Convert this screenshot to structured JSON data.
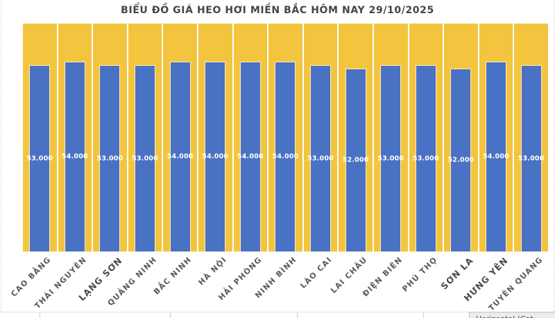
{
  "chart_data": {
    "type": "bar",
    "title": "BIỂU ĐỒ GIÁ HEO HƠI MIỀN BẮC HÔM NAY 29/10/2025",
    "categories": [
      "CAO BẰNG",
      "THÁI NGUYÊN",
      "LẠNG SƠN",
      "QUẢNG NINH",
      "BẮC NINH",
      "HÀ NỘI",
      "HẢI PHÒNG",
      "NINH BÌNH",
      "LÀO CAI",
      "LAI CHÂU",
      "ĐIỆN BIÊN",
      "PHÚ THỌ",
      "SƠN LA",
      "HƯNG YÊN",
      "TUYÊN QUANG"
    ],
    "values": [
      53000,
      54000,
      53000,
      53000,
      54000,
      54000,
      54000,
      54000,
      53000,
      52000,
      53000,
      53000,
      52000,
      54000,
      53000
    ],
    "value_labels": [
      "53.000",
      "54.000",
      "53.000",
      "53.000",
      "54.000",
      "54.000",
      "54.000",
      "54.000",
      "53.000",
      "52.000",
      "53.000",
      "53.000",
      "52.000",
      "54.000",
      "53.000"
    ],
    "bold_categories": [
      "LẠNG SƠN",
      "SƠN LA",
      "HƯNG YÊN"
    ],
    "xlabel": "",
    "ylabel": "",
    "ylim": [
      0,
      65000
    ],
    "legend": "none",
    "grid": false,
    "bar_color": "#4a72c4",
    "column_bg_color": "#f3c53f",
    "value_label_color": "#ffffff",
    "axis_label_color": "#595959",
    "title_color": "#454545"
  },
  "tooltip": {
    "text": "Horizontal (Cat"
  }
}
